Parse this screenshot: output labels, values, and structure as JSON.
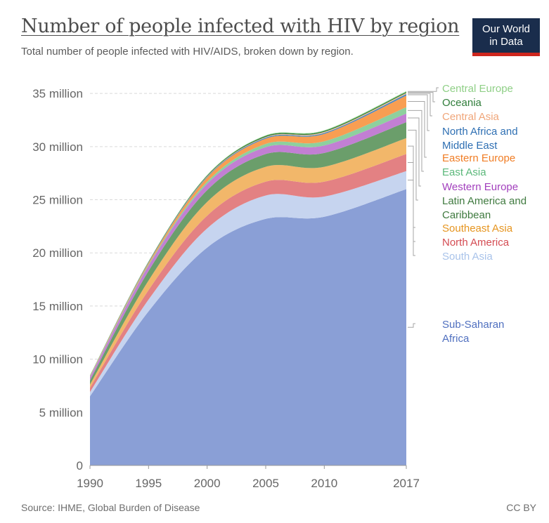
{
  "header": {
    "title": "Number of people infected with HIV by region",
    "subtitle": "Total number of people infected with HIV/AIDS, broken down by region.",
    "logo_line1": "Our World",
    "logo_line2": "in Data"
  },
  "footer": {
    "source": "Source: IHME, Global Burden of Disease",
    "license": "CC BY"
  },
  "chart_data": {
    "type": "area",
    "stacked": true,
    "title": "Number of people infected with HIV by region",
    "subtitle": "Total number of people infected with HIV/AIDS, broken down by region.",
    "xlabel": "",
    "ylabel": "",
    "xlim": [
      1990,
      2017
    ],
    "ylim": [
      0,
      36000000
    ],
    "x_ticks": [
      1990,
      1995,
      2000,
      2005,
      2010,
      2017
    ],
    "x_tick_labels": [
      "1990",
      "1995",
      "2000",
      "2005",
      "2010",
      "2017"
    ],
    "y_ticks": [
      0,
      5000000,
      10000000,
      15000000,
      20000000,
      25000000,
      30000000,
      35000000
    ],
    "y_tick_labels": [
      "0",
      "5 million",
      "10 million",
      "15 million",
      "20 million",
      "25 million",
      "30 million",
      "35 million"
    ],
    "grid": "horizontal dashed",
    "legend": "right, labels aligned to series",
    "x": [
      1990,
      1995,
      2000,
      2005,
      2010,
      2017
    ],
    "series": [
      {
        "name": "Sub-Saharan Africa",
        "color": "#8a9fd6",
        "values": [
          6500000,
          14500000,
          20500000,
          23200000,
          23400000,
          26000000
        ]
      },
      {
        "name": "South Asia",
        "color": "#c6d4ef",
        "values": [
          400000,
          1100000,
          1800000,
          2200000,
          1900000,
          1700000
        ]
      },
      {
        "name": "North America",
        "color": "#e38183",
        "values": [
          400000,
          900000,
          1200000,
          1300000,
          1400000,
          1600000
        ]
      },
      {
        "name": "Southeast Asia",
        "color": "#f2b76a",
        "values": [
          300000,
          900000,
          1300000,
          1400000,
          1400000,
          1500000
        ]
      },
      {
        "name": "Latin America and Caribbean",
        "color": "#6b9e6b",
        "values": [
          400000,
          900000,
          1100000,
          1200000,
          1300000,
          1500000
        ]
      },
      {
        "name": "Western Europe",
        "color": "#c27fd3",
        "values": [
          300000,
          500000,
          600000,
          650000,
          700000,
          800000
        ]
      },
      {
        "name": "East Asia",
        "color": "#8ed09e",
        "values": [
          50000,
          100000,
          200000,
          300000,
          400000,
          600000
        ]
      },
      {
        "name": "Eastern Europe",
        "color": "#f89e52",
        "values": [
          50000,
          150000,
          400000,
          500000,
          700000,
          1100000
        ]
      },
      {
        "name": "North Africa and Middle East",
        "color": "#4a89c4",
        "values": [
          20000,
          50000,
          70000,
          100000,
          100000,
          150000
        ]
      },
      {
        "name": "Central Asia",
        "color": "#f7c39b",
        "values": [
          10000,
          20000,
          40000,
          60000,
          80000,
          100000
        ]
      },
      {
        "name": "Oceania",
        "color": "#2f7d3a",
        "values": [
          30000,
          60000,
          80000,
          100000,
          100000,
          100000
        ]
      },
      {
        "name": "Central Europe",
        "color": "#a6dd9c",
        "values": [
          20000,
          30000,
          40000,
          50000,
          60000,
          70000
        ]
      }
    ],
    "legend_entries": [
      {
        "lines": [
          "Central Europe"
        ],
        "color": "#8fcf86"
      },
      {
        "lines": [
          "Oceania"
        ],
        "color": "#2f7d3a"
      },
      {
        "lines": [
          "Central Asia"
        ],
        "color": "#f0a67a"
      },
      {
        "lines": [
          "North Africa and",
          "Middle East"
        ],
        "color": "#2e6fb3"
      },
      {
        "lines": [
          "Eastern Europe"
        ],
        "color": "#f07d25"
      },
      {
        "lines": [
          "East Asia"
        ],
        "color": "#5bb87a"
      },
      {
        "lines": [
          "Western Europe"
        ],
        "color": "#a23fbd"
      },
      {
        "lines": [
          "Latin America and",
          "Caribbean"
        ],
        "color": "#3f7a3f"
      },
      {
        "lines": [
          "Southeast Asia"
        ],
        "color": "#e69520"
      },
      {
        "lines": [
          "North America"
        ],
        "color": "#d44b52"
      },
      {
        "lines": [
          "South Asia"
        ],
        "color": "#a9c3ea"
      },
      {
        "lines": [
          "Sub-Saharan",
          "Africa"
        ],
        "color": "#4f6fbf"
      }
    ]
  }
}
